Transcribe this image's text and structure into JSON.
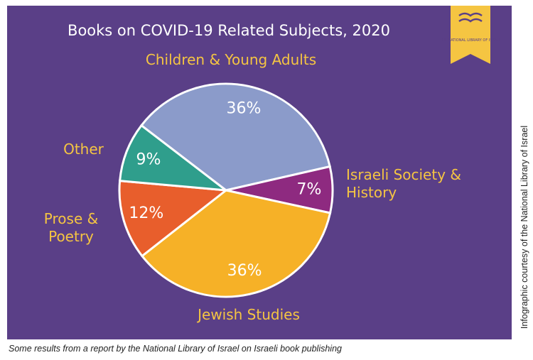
{
  "chart_data": {
    "type": "pie",
    "title": "Books on COVID-19 Related Subjects, 2020",
    "categories": [
      "Children & Young Adults",
      "Israeli Society & History",
      "Jewish Studies",
      "Prose & Poetry",
      "Other"
    ],
    "values": [
      36,
      7,
      36,
      12,
      9
    ],
    "value_labels": [
      "36%",
      "7%",
      "36%",
      "12%",
      "9%"
    ],
    "colors": [
      "#8b9bca",
      "#8e2a80",
      "#f6b127",
      "#e85e2c",
      "#2f9e8c"
    ]
  },
  "logo": "THE NATIONAL LIBRARY OF ISRAEL",
  "caption": "Some results from a report by the National Library of Israel on Israeli book publishing",
  "credit": "Infographic courtesy of the National Library of Israel"
}
